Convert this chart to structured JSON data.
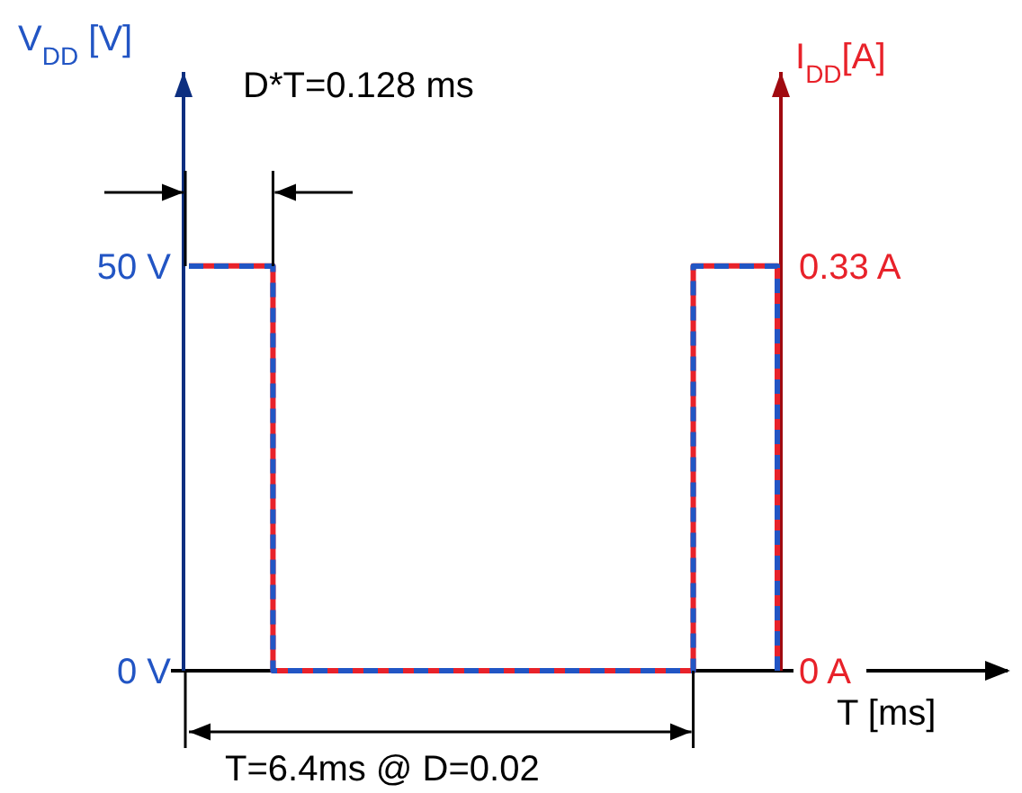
{
  "chart_data": {
    "type": "step",
    "xlabel": "T [ms]",
    "ylabel": "V$_{DD}$ [V]",
    "y2label": "I$_{DD}$[A]",
    "categories": [
      null,
      null,
      null,
      null,
      null,
      null,
      null,
      null
    ],
    "series": [
      {
        "color": "#e8222a",
        "axis": "y2",
        "line_style": "solid",
        "values": [
          0.33,
          0,
          0,
          0,
          0,
          0,
          0.33,
          0
        ]
      },
      {
        "color": "#2255c4",
        "axis": "y",
        "line_style": "dashed",
        "values": [
          50,
          0,
          0,
          0,
          0,
          0,
          50,
          0
        ]
      }
    ],
    "ylim": [
      0,
      74
    ],
    "yticks": [
      {
        "value": 0,
        "label": "0 V"
      },
      {
        "value": 50,
        "label": "50 V"
      }
    ],
    "y2lim": [
      0,
      0.488
    ],
    "y2ticks": [
      {
        "value": 0,
        "label": "0 A"
      },
      {
        "value": 0.33,
        "label": "0.33 A"
      }
    ],
    "annotations": [
      "D*T=0.128 ms",
      "T=6.4ms @ D=0.02"
    ]
  }
}
